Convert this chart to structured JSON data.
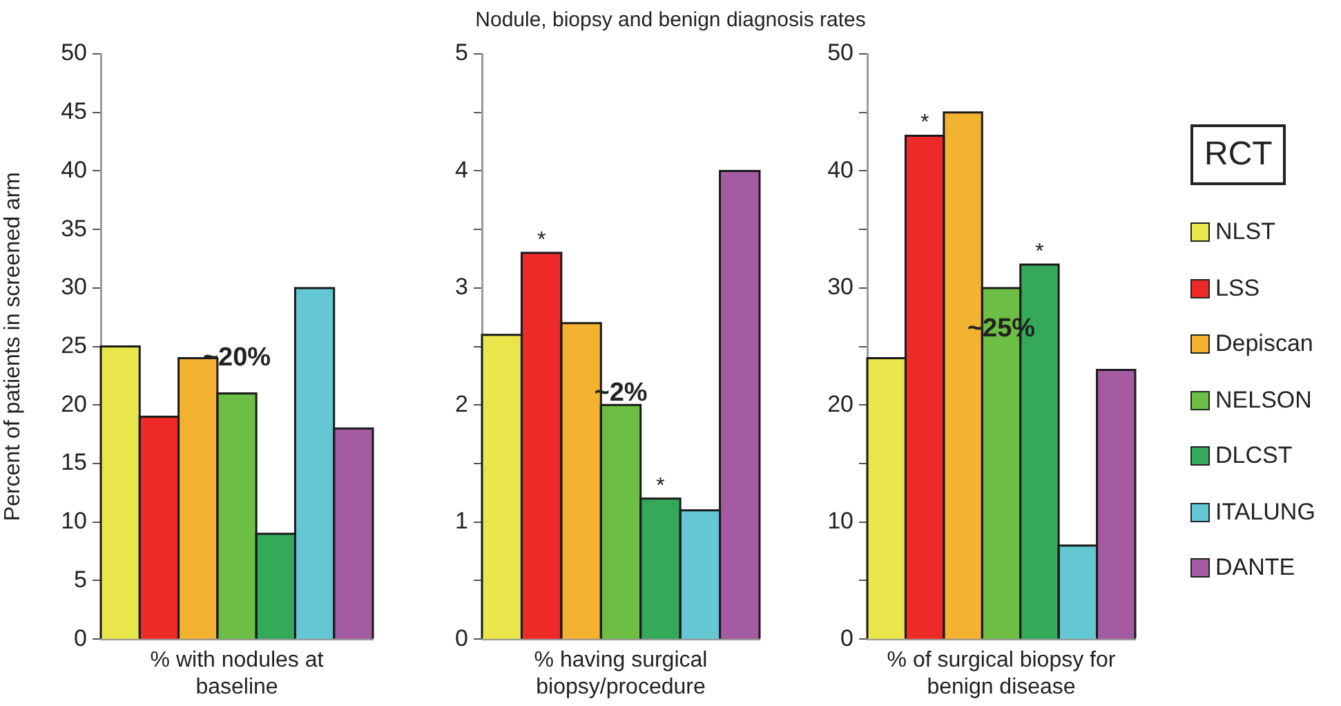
{
  "chart_data": [
    {
      "type": "bar",
      "ylabel": "Percent of patients in screened arm",
      "xlabel": "% with nodules at baseline",
      "categories": [
        null,
        null,
        null,
        null,
        null,
        null,
        null
      ],
      "ylim": [
        0,
        50
      ],
      "yticks": [
        0,
        5,
        10,
        15,
        20,
        25,
        30,
        35,
        40,
        45,
        50
      ],
      "grid": false,
      "legend": false,
      "annotations": [
        "~20%"
      ],
      "series": [
        {
          "colors": [
            "#e8e64a",
            "#ee2a29",
            "#f4b231",
            "#6dbe45",
            "#35a95a",
            "#63c8d4",
            "#a55ba1"
          ],
          "values": [
            25,
            19,
            24,
            21,
            9,
            30,
            18
          ]
        }
      ]
    },
    {
      "type": "bar",
      "title": "Nodule, biopsy and benign diagnosis rates",
      "xlabel": "% having surgical biopsy/procedure",
      "categories": [
        null,
        null,
        null,
        null,
        null,
        null,
        null
      ],
      "ylim": [
        0,
        5
      ],
      "yticks": [
        0,
        {
          "value": 0.5,
          "label": null
        },
        1,
        {
          "value": 1.5,
          "label": null
        },
        2,
        {
          "value": 2.5,
          "label": null
        },
        3,
        {
          "value": 3.5,
          "label": null
        },
        4,
        {
          "value": 4.5,
          "label": null
        },
        5
      ],
      "grid": false,
      "legend": false,
      "annotations": [
        "~2%"
      ],
      "series": [
        {
          "colors": [
            "#e8e64a",
            "#ee2a29",
            "#f4b231",
            "#6dbe45",
            "#35a95a",
            "#63c8d4",
            "#a55ba1"
          ],
          "values": [
            2.6,
            3.3,
            2.7,
            2.0,
            1.2,
            1.1,
            4.0
          ],
          "value_labels": [
            null,
            "*",
            null,
            null,
            "*",
            null,
            null
          ]
        }
      ]
    },
    {
      "type": "bar",
      "xlabel": "% of surgical biopsy for benign disease",
      "categories": [
        null,
        null,
        null,
        null,
        null,
        null,
        null
      ],
      "ylim": [
        0,
        50
      ],
      "yticks": [
        0,
        {
          "value": 5,
          "label": null
        },
        10,
        {
          "value": 15,
          "label": null
        },
        20,
        {
          "value": 25,
          "label": null
        },
        30,
        {
          "value": 35,
          "label": null
        },
        40,
        {
          "value": 45,
          "label": null
        },
        50
      ],
      "grid": false,
      "legend": "right",
      "legend_title": "RCT",
      "annotations": [
        "~25%"
      ],
      "series": [
        {
          "name": "NLST",
          "color": "#e8e64a",
          "values": [
            24,
            null,
            null,
            null,
            null,
            null,
            null
          ]
        },
        {
          "name": "LSS",
          "color": "#ee2a29",
          "values": [
            null,
            43,
            null,
            null,
            null,
            null,
            null
          ],
          "value_labels": [
            null,
            "*",
            null,
            null,
            null,
            null,
            null
          ]
        },
        {
          "name": "Depiscan",
          "color": "#f4b231",
          "values": [
            null,
            null,
            45,
            null,
            null,
            null,
            null
          ]
        },
        {
          "name": "NELSON",
          "color": "#6dbe45",
          "values": [
            null,
            null,
            null,
            30,
            null,
            null,
            null
          ]
        },
        {
          "name": "DLCST",
          "color": "#35a95a",
          "values": [
            null,
            null,
            null,
            null,
            32,
            null,
            null
          ],
          "value_labels": [
            null,
            null,
            null,
            null,
            "*",
            null,
            null
          ]
        },
        {
          "name": "ITALUNG",
          "color": "#63c8d4",
          "values": [
            null,
            null,
            null,
            null,
            null,
            8,
            null
          ]
        },
        {
          "name": "DANTE",
          "color": "#a55ba1",
          "values": [
            null,
            null,
            null,
            null,
            null,
            null,
            23
          ]
        }
      ]
    }
  ]
}
